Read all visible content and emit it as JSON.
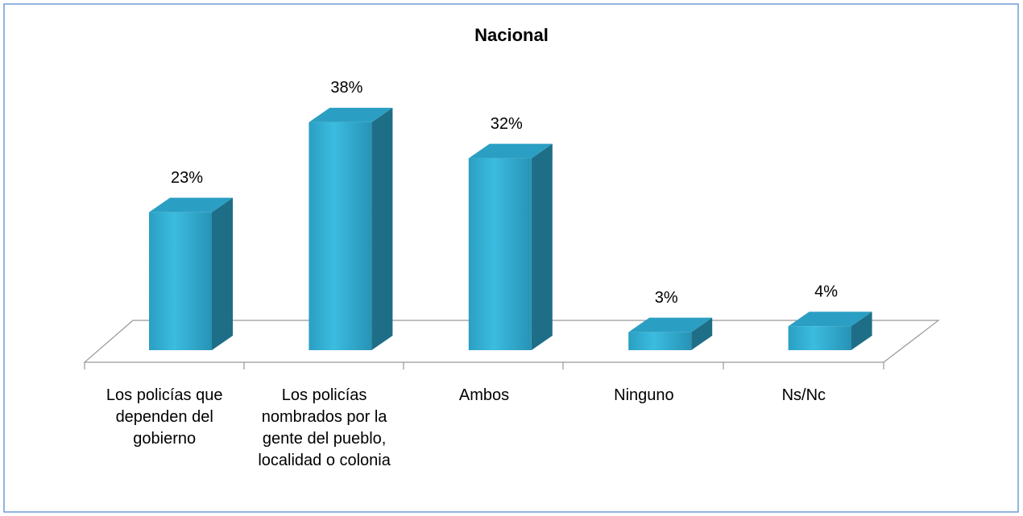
{
  "chart_data": {
    "type": "bar3d",
    "title": "Nacional",
    "categories": [
      "Los policías que dependen del gobierno",
      "Los policías nombrados por la gente del pueblo, localidad o colonia",
      "Ambos",
      "Ninguno",
      "Ns/Nc"
    ],
    "values": [
      23,
      38,
      32,
      3,
      4
    ],
    "value_labels": [
      "23%",
      "38%",
      "32%",
      "3%",
      "4%"
    ],
    "color": "#33b5d8"
  }
}
